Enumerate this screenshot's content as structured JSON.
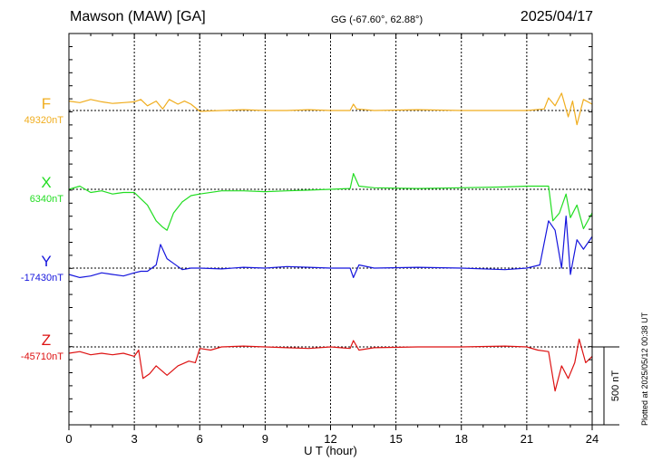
{
  "header": {
    "station": "Mawson (MAW)  [GA]",
    "coords": "GG (-67.60°,  62.88°)",
    "date": "2025/04/17"
  },
  "plotted_note": "Plotted at 2025/05/12 00:38 UT",
  "chart_data": {
    "type": "line",
    "xlabel": "U T (hour)",
    "xlim": [
      0,
      24
    ],
    "xticks": [
      "0",
      "3",
      "6",
      "9",
      "12",
      "15",
      "18",
      "21",
      "24"
    ],
    "scale_label": "500 nT",
    "scale_nT": 500,
    "grid": true,
    "series": [
      {
        "name": "F",
        "baseline_label": "49320nT",
        "baseline_nT": 49320,
        "color": "#f0ad1e",
        "x": [
          0,
          0.5,
          1,
          1.5,
          2,
          2.5,
          3,
          3.3,
          3.6,
          4,
          4.3,
          4.6,
          5,
          5.3,
          5.6,
          6,
          7,
          8,
          9,
          10,
          11,
          12,
          12.9,
          13.05,
          13.2,
          14,
          16,
          18,
          20,
          21,
          21.8,
          22,
          22.3,
          22.6,
          22.9,
          23.1,
          23.3,
          23.6,
          24
        ],
        "y": [
          60,
          50,
          70,
          55,
          45,
          50,
          55,
          70,
          30,
          60,
          10,
          70,
          40,
          60,
          40,
          -5,
          0,
          5,
          0,
          0,
          5,
          0,
          0,
          40,
          10,
          0,
          5,
          0,
          0,
          0,
          10,
          80,
          30,
          110,
          -40,
          60,
          -90,
          70,
          40
        ]
      },
      {
        "name": "X",
        "baseline_label": "6340nT",
        "baseline_nT": 6340,
        "color": "#22dd22",
        "x": [
          0,
          0.5,
          1,
          1.5,
          2,
          2.5,
          3,
          3.3,
          3.6,
          4,
          4.3,
          4.5,
          4.8,
          5.2,
          5.6,
          6,
          7,
          8,
          9,
          10,
          11,
          12,
          12.9,
          13.05,
          13.3,
          14,
          16,
          18,
          20,
          21,
          21.8,
          22,
          22.2,
          22.5,
          22.8,
          23,
          23.3,
          23.6,
          24
        ],
        "y": [
          0,
          20,
          -20,
          -10,
          -30,
          -20,
          -20,
          -60,
          -100,
          -200,
          -240,
          -260,
          -150,
          -80,
          -40,
          -30,
          -10,
          -10,
          -15,
          -10,
          -5,
          0,
          5,
          100,
          20,
          10,
          5,
          10,
          15,
          20,
          20,
          20,
          -200,
          -150,
          -30,
          -180,
          -100,
          -250,
          -150
        ]
      },
      {
        "name": "Y",
        "baseline_label": "-17430nT",
        "baseline_nT": -17430,
        "color": "#1515dd",
        "x": [
          0,
          0.5,
          1,
          1.5,
          2,
          2.5,
          3,
          3.3,
          3.6,
          4,
          4.2,
          4.5,
          4.8,
          5.2,
          5.6,
          6,
          7,
          8,
          9,
          10,
          11,
          12,
          12.9,
          13.05,
          13.3,
          14,
          16,
          18,
          20,
          21,
          21.6,
          22,
          22.3,
          22.6,
          22.8,
          23,
          23.3,
          23.6,
          24
        ],
        "y": [
          -40,
          -60,
          -50,
          -30,
          -40,
          -50,
          -30,
          -20,
          -20,
          20,
          150,
          60,
          30,
          -10,
          0,
          0,
          -5,
          5,
          0,
          10,
          5,
          0,
          0,
          -60,
          20,
          0,
          5,
          0,
          -10,
          0,
          20,
          300,
          240,
          0,
          330,
          -40,
          180,
          120,
          200
        ]
      },
      {
        "name": "Z",
        "baseline_label": "-45710nT",
        "baseline_nT": -45710,
        "color": "#dd1111",
        "x": [
          0,
          0.5,
          1,
          1.5,
          2,
          2.5,
          3,
          3.2,
          3.4,
          3.7,
          4,
          4.5,
          5,
          5.5,
          5.8,
          6,
          6.5,
          7,
          8,
          9,
          10,
          11,
          12,
          12.9,
          13.05,
          13.3,
          14,
          16,
          18,
          20,
          21,
          21.5,
          22,
          22.3,
          22.6,
          22.9,
          23.2,
          23.4,
          23.7,
          24
        ],
        "y": [
          -40,
          -30,
          -50,
          -40,
          -50,
          -40,
          -60,
          -20,
          -200,
          -170,
          -120,
          -180,
          -120,
          -90,
          -100,
          -10,
          -20,
          0,
          5,
          0,
          -5,
          -10,
          0,
          -10,
          40,
          -20,
          -5,
          0,
          0,
          5,
          0,
          -20,
          -30,
          -280,
          -120,
          -200,
          -100,
          50,
          -100,
          -60
        ]
      }
    ]
  }
}
